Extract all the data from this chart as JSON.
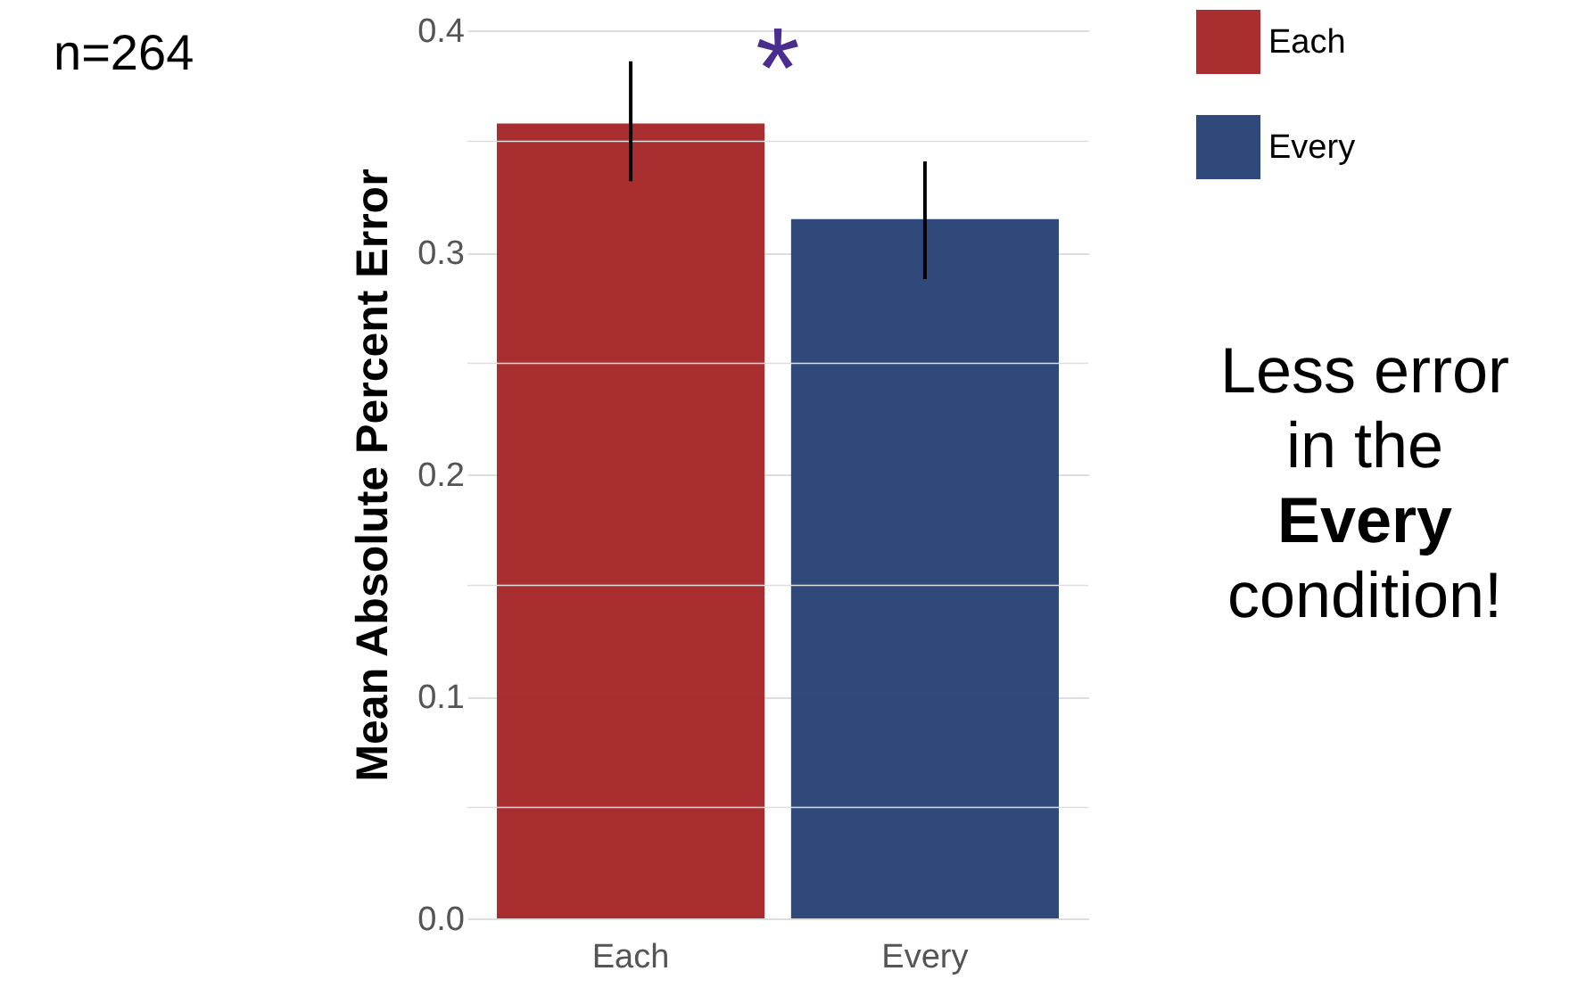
{
  "chart_data": {
    "type": "bar",
    "ylabel": "Mean Absolute Percent Error",
    "categories": [
      "Each",
      "Every"
    ],
    "series": [
      {
        "name": "Each",
        "color": "#a32325",
        "values": [
          0.358,
          null
        ],
        "errors": [
          [
            0.332,
            0.386
          ],
          null
        ]
      },
      {
        "name": "Every",
        "color": "#243f73",
        "values": [
          null,
          0.315
        ],
        "errors": [
          null,
          [
            0.288,
            0.341
          ]
        ]
      }
    ],
    "ylim": [
      0,
      0.4
    ],
    "yticks": [
      {
        "value": 0,
        "label": "0.0"
      },
      {
        "value": 0.1,
        "label": "0.1"
      },
      {
        "value": 0.2,
        "label": "0.2"
      },
      {
        "value": 0.3,
        "label": "0.3"
      },
      {
        "value": 0.4,
        "label": "0.4"
      }
    ],
    "grid": "y",
    "legend": "top right",
    "annotations": [
      "n=264",
      "*",
      "Less error in the Every condition!"
    ]
  }
}
